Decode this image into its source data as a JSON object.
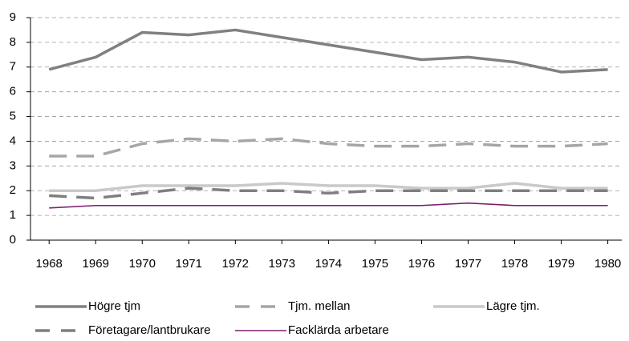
{
  "chart_data": {
    "type": "line",
    "x": [
      1968,
      1969,
      1970,
      1971,
      1972,
      1973,
      1974,
      1975,
      1976,
      1977,
      1978,
      1979,
      1980
    ],
    "xlim": [
      1967.6,
      1980.3
    ],
    "ylim": [
      0,
      9
    ],
    "yticks": [
      0,
      1,
      2,
      3,
      4,
      5,
      6,
      7,
      8,
      9
    ],
    "grid": true,
    "legend": "bottom",
    "series": [
      {
        "name": "Högre tjm",
        "color": "#808080",
        "dash": false,
        "values": [
          6.9,
          7.4,
          8.4,
          8.3,
          8.5,
          8.2,
          7.9,
          7.6,
          7.3,
          7.4,
          7.2,
          6.8,
          6.9
        ]
      },
      {
        "name": "Tjm. mellan",
        "color": "#a6a6a6",
        "dash": true,
        "values": [
          3.4,
          3.4,
          3.9,
          4.1,
          4.0,
          4.1,
          3.9,
          3.8,
          3.8,
          3.9,
          3.8,
          3.8,
          3.9
        ]
      },
      {
        "name": "Lägre tjm.",
        "color": "#c9c9c9",
        "dash": false,
        "values": [
          2.0,
          2.0,
          2.2,
          2.2,
          2.2,
          2.3,
          2.2,
          2.2,
          2.1,
          2.1,
          2.3,
          2.1,
          2.1
        ]
      },
      {
        "name": "Företagare/lantbrukare",
        "color": "#7f7f7f",
        "dash": true,
        "values": [
          1.8,
          1.7,
          1.9,
          2.1,
          2.0,
          2.0,
          1.9,
          2.0,
          2.0,
          2.0,
          2.0,
          2.0,
          2.0
        ]
      },
      {
        "name": "Facklärda arbetare",
        "color": "#7b1f6e",
        "dash": false,
        "values": [
          1.3,
          1.4,
          1.4,
          1.4,
          1.4,
          1.4,
          1.4,
          1.4,
          1.4,
          1.5,
          1.4,
          1.4,
          1.4
        ]
      }
    ]
  }
}
